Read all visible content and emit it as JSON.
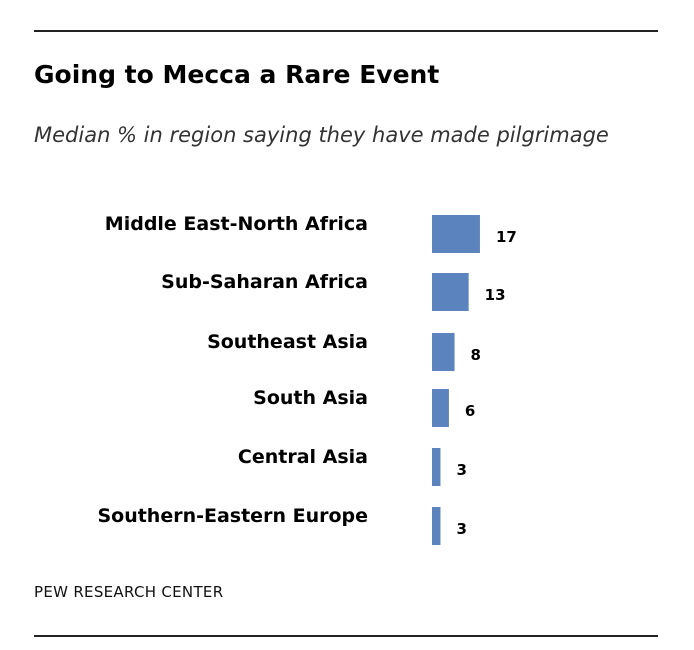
{
  "chart_data": {
    "type": "bar",
    "orientation": "horizontal",
    "title": "Going to Mecca a Rare Event",
    "subtitle": "Median % in region saying they have made pilgrimage",
    "categories": [
      "Middle East-North Africa",
      "Sub-Saharan Africa",
      "Southeast Asia",
      "South Asia",
      "Central Asia",
      "Southern-Eastern Europe"
    ],
    "values": [
      17,
      13,
      8,
      6,
      3,
      3
    ],
    "bar_color": "#5b83bd",
    "xlim": [
      0,
      100
    ],
    "grid": false,
    "legend": "none"
  },
  "footer": {
    "source": "PEW RESEARCH  CENTER"
  }
}
